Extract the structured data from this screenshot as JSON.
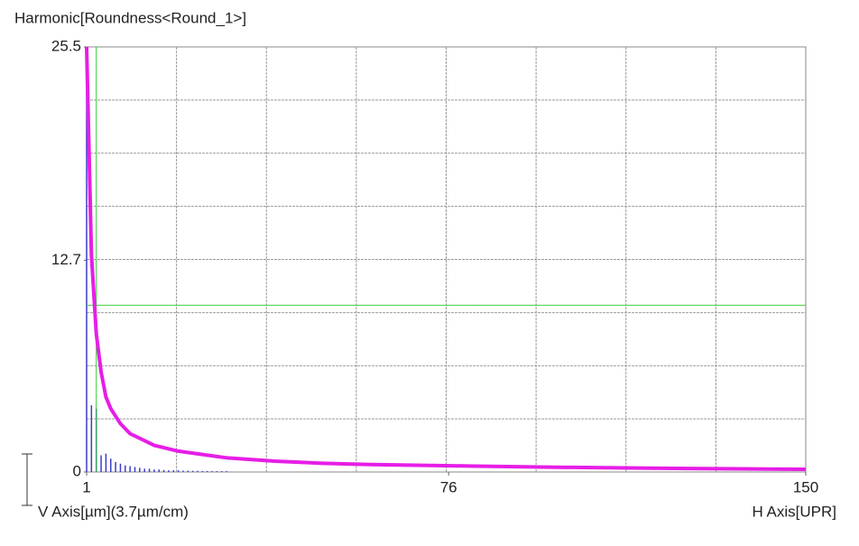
{
  "chart_data": {
    "type": "line",
    "title": "Harmonic[Roundness<Round_1>]",
    "y_label": "V Axis[µm](3.7µm/cm)",
    "x_label": "H Axis[UPR]",
    "xlim": [
      1,
      150
    ],
    "ylim": [
      0,
      25.5
    ],
    "xticks": [
      1,
      76,
      150
    ],
    "yticks": [
      0,
      12.7,
      25.5
    ],
    "grid_divisions": 8,
    "series": [
      {
        "color": "#e61ee6",
        "x": [
          1,
          2,
          3,
          4,
          5,
          6,
          8,
          10,
          15,
          20,
          30,
          40,
          50,
          60,
          80,
          100,
          120,
          150
        ],
        "values": [
          25.5,
          13,
          8.3,
          6.0,
          4.5,
          3.8,
          2.9,
          2.3,
          1.6,
          1.25,
          0.85,
          0.65,
          0.52,
          0.45,
          0.36,
          0.28,
          0.22,
          0.16
        ]
      }
    ],
    "harmonics": {
      "color": "#3c3ccc",
      "x": [
        1,
        2,
        3,
        4,
        5,
        6,
        7,
        8,
        9,
        10,
        11,
        12,
        13,
        14,
        15,
        16,
        17,
        18,
        19,
        20,
        21,
        22,
        23,
        24,
        25,
        26,
        27,
        28,
        29,
        30
      ],
      "values": [
        24,
        4.0,
        3.8,
        1.0,
        1.1,
        0.8,
        0.6,
        0.5,
        0.4,
        0.35,
        0.3,
        0.25,
        0.2,
        0.2,
        0.15,
        0.15,
        0.12,
        0.1,
        0.1,
        0.1,
        0.08,
        0.08,
        0.07,
        0.07,
        0.06,
        0.06,
        0.05,
        0.05,
        0.05,
        0.05
      ]
    },
    "cursor": {
      "x": 3,
      "y": 10.0,
      "color": "#33cc33"
    }
  }
}
